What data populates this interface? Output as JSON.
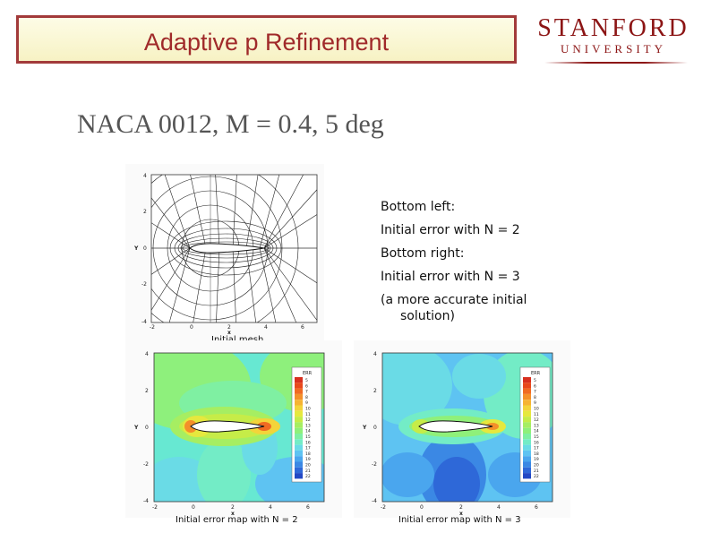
{
  "header": {
    "title": "Adaptive p Refinement"
  },
  "logo": {
    "line1": "STANFORD",
    "line2": "UNIVERSITY"
  },
  "subtitle": "NACA 0012, M = 0.4, 5 deg",
  "notes": [
    "Bottom left:",
    "Initial error with N = 2",
    "Bottom right:",
    "Initial error with N = 3",
    "(a more accurate initial",
    "solution)"
  ],
  "figures": {
    "mesh": {
      "caption": "Initial mesh",
      "xlabel": "x",
      "ylabel": "Y",
      "xticks": [
        "-2",
        "0",
        "2",
        "4",
        "6"
      ],
      "yticks": [
        "4",
        "2",
        "0",
        "-2",
        "-4"
      ]
    },
    "error_n2": {
      "caption": "Initial error map with N = 2",
      "xlabel": "x",
      "ylabel": "Y",
      "xticks": [
        "-2",
        "0",
        "2",
        "4",
        "6"
      ],
      "yticks": [
        "4",
        "2",
        "0",
        "-2",
        "-4"
      ],
      "legend_title": "ERR",
      "legend_levels": [
        "5",
        "6",
        "7",
        "8",
        "9",
        "10",
        "11",
        "12",
        "13",
        "14",
        "15",
        "16",
        "17",
        "18",
        "19",
        "20",
        "21",
        "22"
      ]
    },
    "error_n3": {
      "caption": "Initial error map with N = 3",
      "xlabel": "x",
      "ylabel": "Y",
      "xticks": [
        "-2",
        "0",
        "2",
        "4",
        "6"
      ],
      "yticks": [
        "4",
        "2",
        "0",
        "-2",
        "-4"
      ],
      "legend_title": "ERR",
      "legend_levels": [
        "5",
        "6",
        "7",
        "8",
        "9",
        "10",
        "11",
        "12",
        "13",
        "14",
        "15",
        "16",
        "17",
        "18",
        "19",
        "20",
        "21",
        "22"
      ]
    }
  },
  "colors": {
    "title_border": "#a23a3a",
    "title_text": "#a02a2a",
    "stanford": "#8c1515",
    "error_scale": [
      "#d7301f",
      "#e8481c",
      "#f06a22",
      "#f4902a",
      "#f6b332",
      "#f3d43a",
      "#e6e83e",
      "#c6ec48",
      "#a6ee62",
      "#8ff07a",
      "#7ff0a2",
      "#73ecc6",
      "#6adbe6",
      "#5ec3f2",
      "#4aa6ee",
      "#3b88e4",
      "#2e68d8",
      "#2248c4"
    ]
  }
}
